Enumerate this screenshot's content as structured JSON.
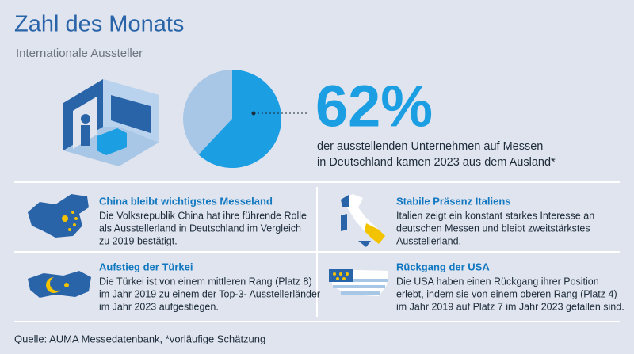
{
  "header": {
    "title": "Zahl des Monats",
    "subtitle": "Internationale Aussteller"
  },
  "chart_data": {
    "type": "pie",
    "values": [
      62
    ],
    "value_labels": [
      "62%"
    ],
    "colors": [
      "#1b9ee2",
      "#a8c6e6"
    ],
    "caption": [
      "der ausstellenden Unternehmen auf Messen",
      "in Deutschland kamen 2023 aus dem Ausland*"
    ]
  },
  "cards": [
    {
      "heading": "China bleibt wichtigstes Messeland",
      "lines": [
        "Die Volksrepublik China hat ihre führende Rolle",
        "als Ausstellerland in Deutschland im Vergleich",
        "zu 2019 bestätigt."
      ]
    },
    {
      "heading": "Stabile Präsenz Italiens",
      "lines": [
        "Italien zeigt ein konstant starkes Interesse an",
        "deutschen Messen und bleibt zweitstärkstes",
        "Ausstellerland."
      ]
    },
    {
      "heading": "Aufstieg der Türkei",
      "lines": [
        "Die Türkei ist von einem mittleren Rang (Platz 8)",
        "im Jahr 2019 zu einem der Top-3- Ausstellerländer",
        "im Jahr 2023 aufgestiegen."
      ]
    },
    {
      "heading": "Rückgang der USA",
      "lines": [
        "Die USA haben einen Rückgang ihrer Position",
        "erlebt, indem sie von einem oberen Rang (Platz 4)",
        "im Jahr 2019 auf Platz 7 im Jahr 2023 gefallen sind."
      ]
    }
  ],
  "source": "Quelle: AUMA Messedatenbank, *vorläufige Schätzung"
}
